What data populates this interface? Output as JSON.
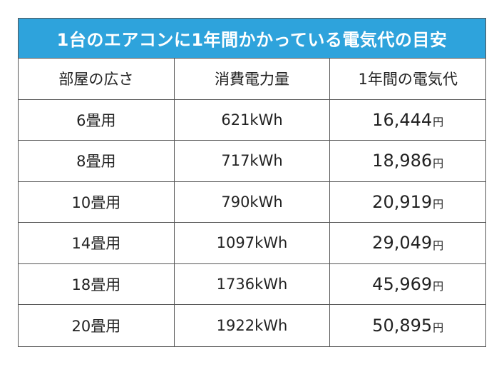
{
  "table": {
    "title": "1台のエアコンに1年間かかっている電気代の目安",
    "headers": [
      "部屋の広さ",
      "消費電力量",
      "1年間の電気代"
    ],
    "rows": [
      {
        "size": "6畳用",
        "usage": "621kWh",
        "cost": "16,444",
        "unit": "円"
      },
      {
        "size": "8畳用",
        "usage": "717kWh",
        "cost": "18,986",
        "unit": "円"
      },
      {
        "size": "10畳用",
        "usage": "790kWh",
        "cost": "20,919",
        "unit": "円"
      },
      {
        "size": "14畳用",
        "usage": "1097kWh",
        "cost": "29,049",
        "unit": "円"
      },
      {
        "size": "18畳用",
        "usage": "1736kWh",
        "cost": "45,969",
        "unit": "円"
      },
      {
        "size": "20畳用",
        "usage": "1922kWh",
        "cost": "50,895",
        "unit": "円"
      }
    ]
  }
}
